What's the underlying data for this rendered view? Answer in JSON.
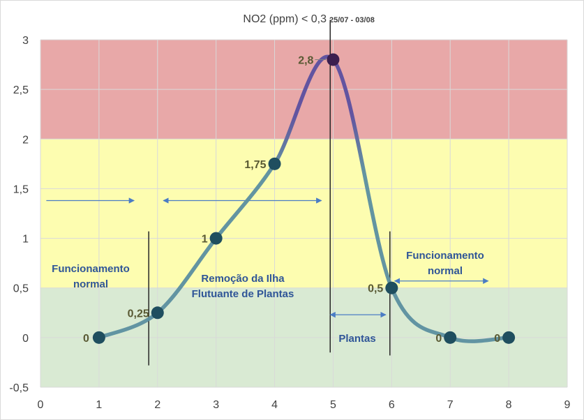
{
  "chart_data": {
    "type": "line",
    "title": "NO2 (ppm) < 0,3",
    "subtitle": "25/07 - 03/08",
    "xlim": [
      0,
      9
    ],
    "ylim": [
      -0.5,
      3
    ],
    "x_ticks": [
      "0",
      "1",
      "2",
      "3",
      "4",
      "5",
      "6",
      "7",
      "8",
      "9"
    ],
    "y_ticks": [
      "-0,5",
      "0",
      "0,5",
      "1",
      "1,5",
      "2",
      "2,5",
      "3"
    ],
    "grid": true,
    "series": [
      {
        "points": [
          {
            "x": 1,
            "y": 0,
            "label": "0"
          },
          {
            "x": 2,
            "y": 0.25,
            "label": "0,25"
          },
          {
            "x": 3,
            "y": 1,
            "label": "1"
          },
          {
            "x": 4,
            "y": 1.75,
            "label": "1,75"
          },
          {
            "x": 5,
            "y": 2.8,
            "label": "2,8"
          },
          {
            "x": 6,
            "y": 0.5,
            "label": "0,5"
          },
          {
            "x": 7,
            "y": 0,
            "label": "0"
          },
          {
            "x": 8,
            "y": 0,
            "label": "0"
          }
        ]
      }
    ],
    "bands": [
      {
        "from": 2,
        "to": 3,
        "color": "#e8a8a8"
      },
      {
        "from": 0.5,
        "to": 2,
        "color": "#fdfdb0"
      },
      {
        "from": -0.5,
        "to": 0.5,
        "color": "#d9ead3"
      }
    ],
    "vertical_lines": [
      1.85,
      4.95,
      5.97
    ],
    "annotations": {
      "left": [
        "Funcionamento",
        "normal"
      ],
      "removal": [
        "Remoção da Ilha",
        "Flutuante de Plantas"
      ],
      "plantas": [
        "Plantas"
      ],
      "right": [
        "Funcionamento",
        "normal"
      ]
    },
    "arrows": [
      {
        "from": 0.1,
        "to": 1.6,
        "y": 1.38,
        "heads": "end"
      },
      {
        "from": 2.1,
        "to": 4.8,
        "y": 1.38,
        "heads": "both"
      },
      {
        "from": 4.95,
        "to": 5.9,
        "y": 0.23,
        "heads": "both"
      },
      {
        "from": 6.05,
        "to": 7.65,
        "y": 0.57,
        "heads": "both"
      }
    ],
    "colors": {
      "line_low": "#5b8fa0",
      "line_high": "#5b4fa0",
      "marker": "#1f4e5f",
      "marker_peak": "#3b1f4f",
      "grid": "#d9d9d9",
      "annotation": "#2f5597",
      "arrow": "#4a7cc4"
    }
  }
}
